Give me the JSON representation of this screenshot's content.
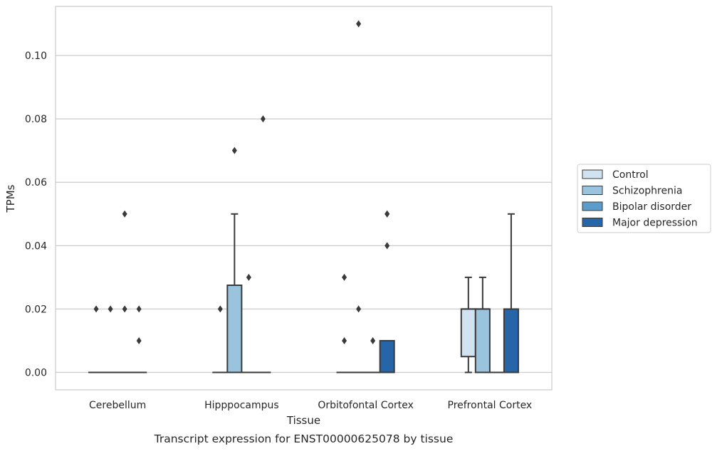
{
  "chart_data": {
    "type": "boxplot",
    "title": "",
    "caption": "Transcript expression for ENST00000625078 by tissue",
    "xlabel": "Tissue",
    "ylabel": "TPMs",
    "ylim": [
      -0.0055,
      0.1155
    ],
    "yticks": [
      0.0,
      0.02,
      0.04,
      0.06,
      0.08,
      0.1
    ],
    "ytick_labels": [
      "0.00",
      "0.02",
      "0.04",
      "0.06",
      "0.08",
      "0.10"
    ],
    "grid": true,
    "legend_position": "right",
    "categories": [
      "Cerebellum",
      "Hipppocampus",
      "Orbitofontal Cortex",
      "Prefrontal Cortex"
    ],
    "series": [
      {
        "name": "Control",
        "color": "#d1e2f0",
        "boxes": [
          {
            "q1": 0,
            "median": 0,
            "q3": 0,
            "whisker_low": 0,
            "whisker_high": 0,
            "outliers": [
              0.02
            ]
          },
          {
            "q1": 0,
            "median": 0,
            "q3": 0,
            "whisker_low": 0,
            "whisker_high": 0,
            "outliers": [
              0.02
            ]
          },
          {
            "q1": 0,
            "median": 0,
            "q3": 0,
            "whisker_low": 0,
            "whisker_high": 0,
            "outliers": [
              0.03,
              0.01
            ]
          },
          {
            "q1": 0.005,
            "median": 0.02,
            "q3": 0.02,
            "whisker_low": 0,
            "whisker_high": 0.03,
            "outliers": []
          }
        ]
      },
      {
        "name": "Schizophrenia",
        "color": "#9ac4de",
        "boxes": [
          {
            "q1": 0,
            "median": 0,
            "q3": 0,
            "whisker_low": 0,
            "whisker_high": 0,
            "outliers": [
              0.02
            ]
          },
          {
            "q1": 0,
            "median": 0,
            "q3": 0.0275,
            "whisker_low": 0,
            "whisker_high": 0.05,
            "outliers": [
              0.07
            ]
          },
          {
            "q1": 0,
            "median": 0,
            "q3": 0,
            "whisker_low": 0,
            "whisker_high": 0,
            "outliers": [
              0.11,
              0.02
            ]
          },
          {
            "q1": 0,
            "median": 0.02,
            "q3": 0.02,
            "whisker_low": 0,
            "whisker_high": 0.03,
            "outliers": []
          }
        ]
      },
      {
        "name": "Bipolar disorder",
        "color": "#5b9cca",
        "boxes": [
          {
            "q1": 0,
            "median": 0,
            "q3": 0,
            "whisker_low": 0,
            "whisker_high": 0,
            "outliers": [
              0.05,
              0.02
            ]
          },
          {
            "q1": 0,
            "median": 0,
            "q3": 0,
            "whisker_low": 0,
            "whisker_high": 0,
            "outliers": [
              0.03
            ]
          },
          {
            "q1": 0,
            "median": 0,
            "q3": 0,
            "whisker_low": 0,
            "whisker_high": 0,
            "outliers": [
              0.01
            ]
          },
          {
            "q1": 0,
            "median": 0,
            "q3": 0,
            "whisker_low": 0,
            "whisker_high": 0,
            "outliers": []
          }
        ]
      },
      {
        "name": "Major depression",
        "color": "#2565a8",
        "boxes": [
          {
            "q1": 0,
            "median": 0,
            "q3": 0,
            "whisker_low": 0,
            "whisker_high": 0,
            "outliers": [
              0.02,
              0.01
            ]
          },
          {
            "q1": 0,
            "median": 0,
            "q3": 0,
            "whisker_low": 0,
            "whisker_high": 0,
            "outliers": [
              0.08
            ]
          },
          {
            "q1": 0,
            "median": 0,
            "q3": 0.01,
            "whisker_low": 0,
            "whisker_high": 0.01,
            "outliers": [
              0.05,
              0.05,
              0.04
            ]
          },
          {
            "q1": 0,
            "median": 0,
            "q3": 0.02,
            "whisker_low": 0,
            "whisker_high": 0.05,
            "outliers": []
          }
        ]
      }
    ]
  }
}
